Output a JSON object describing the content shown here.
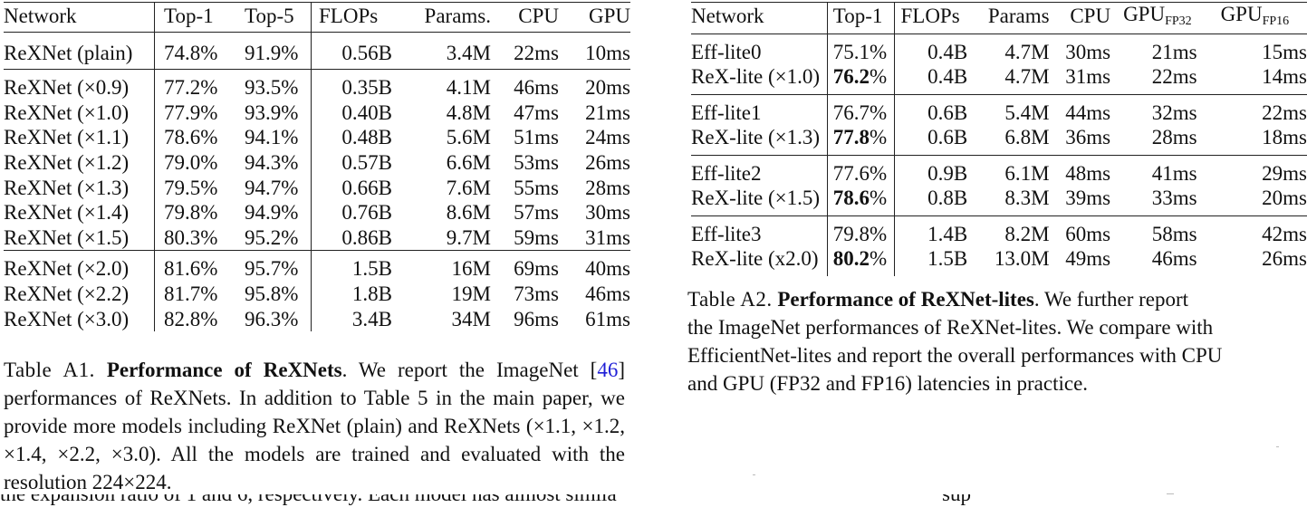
{
  "table_a1": {
    "headers": [
      "Network",
      "Top-1",
      "Top-5",
      "FLOPs",
      "Params.",
      "CPU",
      "GPU"
    ],
    "groups": [
      [
        {
          "net": "ReXNet (plain)",
          "top1": "74.8%",
          "top5": "91.9%",
          "flops": "0.56B",
          "params": "3.4M",
          "cpu": "22ms",
          "gpu": "10ms"
        }
      ],
      [
        {
          "net": "ReXNet (×0.9)",
          "top1": "77.2%",
          "top5": "93.5%",
          "flops": "0.35B",
          "params": "4.1M",
          "cpu": "46ms",
          "gpu": "20ms"
        },
        {
          "net": "ReXNet (×1.0)",
          "top1": "77.9%",
          "top5": "93.9%",
          "flops": "0.40B",
          "params": "4.8M",
          "cpu": "47ms",
          "gpu": "21ms"
        },
        {
          "net": "ReXNet (×1.1)",
          "top1": "78.6%",
          "top5": "94.1%",
          "flops": "0.48B",
          "params": "5.6M",
          "cpu": "51ms",
          "gpu": "24ms"
        },
        {
          "net": "ReXNet (×1.2)",
          "top1": "79.0%",
          "top5": "94.3%",
          "flops": "0.57B",
          "params": "6.6M",
          "cpu": "53ms",
          "gpu": "26ms"
        },
        {
          "net": "ReXNet (×1.3)",
          "top1": "79.5%",
          "top5": "94.7%",
          "flops": "0.66B",
          "params": "7.6M",
          "cpu": "55ms",
          "gpu": "28ms"
        },
        {
          "net": "ReXNet (×1.4)",
          "top1": "79.8%",
          "top5": "94.9%",
          "flops": "0.76B",
          "params": "8.6M",
          "cpu": "57ms",
          "gpu": "30ms"
        },
        {
          "net": "ReXNet (×1.5)",
          "top1": "80.3%",
          "top5": "95.2%",
          "flops": "0.86B",
          "params": "9.7M",
          "cpu": "59ms",
          "gpu": "31ms"
        }
      ],
      [
        {
          "net": "ReXNet (×2.0)",
          "top1": "81.6%",
          "top5": "95.7%",
          "flops": "1.5B",
          "params": "16M",
          "cpu": "69ms",
          "gpu": "40ms"
        },
        {
          "net": "ReXNet (×2.2)",
          "top1": "81.7%",
          "top5": "95.8%",
          "flops": "1.8B",
          "params": "19M",
          "cpu": "73ms",
          "gpu": "46ms"
        },
        {
          "net": "ReXNet (×3.0)",
          "top1": "82.8%",
          "top5": "96.3%",
          "flops": "3.4B",
          "params": "34M",
          "cpu": "96ms",
          "gpu": "61ms"
        }
      ]
    ]
  },
  "caption_a1": {
    "label": "Table A1.",
    "title": "Performance of ReXNets",
    "text_before_ref": ". We report the ImageNet [",
    "ref": "46",
    "text_after_ref": "] performances of ReXNets. In addition to Table 5 in the main paper, we provide more models including ReXNet (plain) and ReXNets (×1.1, ×1.2, ×1.4, ×2.2, ×3.0). All the models are trained and evaluated with the resolution 224×224."
  },
  "table_a2": {
    "headers": {
      "network": "Network",
      "top1": "Top-1",
      "flops": "FLOPs",
      "params": "Params",
      "cpu": "CPU",
      "gpu_fp32_base": "GPU",
      "gpu_fp32_sub": "FP32",
      "gpu_fp16_base": "GPU",
      "gpu_fp16_sub": "FP16"
    },
    "groups": [
      [
        {
          "net": "Eff-lite0",
          "top1": "75.1%",
          "bold": false,
          "flops": "0.4B",
          "params": "4.7M",
          "cpu": "30ms",
          "fp32": "21ms",
          "fp16": "15ms"
        },
        {
          "net": "ReX-lite (×1.0)",
          "top1": "76.2",
          "bold": true,
          "flops": "0.4B",
          "params": "4.7M",
          "cpu": "31ms",
          "fp32": "22ms",
          "fp16": "14ms"
        }
      ],
      [
        {
          "net": "Eff-lite1",
          "top1": "76.7%",
          "bold": false,
          "flops": "0.6B",
          "params": "5.4M",
          "cpu": "44ms",
          "fp32": "32ms",
          "fp16": "22ms"
        },
        {
          "net": "ReX-lite (×1.3)",
          "top1": "77.8",
          "bold": true,
          "flops": "0.6B",
          "params": "6.8M",
          "cpu": "36ms",
          "fp32": "28ms",
          "fp16": "18ms"
        }
      ],
      [
        {
          "net": "Eff-lite2",
          "top1": "77.6%",
          "bold": false,
          "flops": "0.9B",
          "params": "6.1M",
          "cpu": "48ms",
          "fp32": "41ms",
          "fp16": "29ms"
        },
        {
          "net": "ReX-lite (×1.5)",
          "top1": "78.6",
          "bold": true,
          "flops": "0.8B",
          "params": "8.3M",
          "cpu": "39ms",
          "fp32": "33ms",
          "fp16": "20ms"
        }
      ],
      [
        {
          "net": "Eff-lite3",
          "top1": "79.8%",
          "bold": false,
          "flops": "1.4B",
          "params": "8.2M",
          "cpu": "60ms",
          "fp32": "58ms",
          "fp16": "42ms"
        },
        {
          "net": "ReX-lite (x2.0)",
          "top1": "80.2",
          "bold": true,
          "flops": "1.5B",
          "params": "13.0M",
          "cpu": "49ms",
          "fp32": "46ms",
          "fp16": "26ms"
        }
      ]
    ],
    "percent_sign": "%"
  },
  "caption_a2": {
    "label": "Table A2.",
    "title": "Performance of ReXNet-lites",
    "line1_rest": ". We further report",
    "line2": "the ImageNet performances of ReXNet-lites. We compare with",
    "line3": "EfficientNet-lites and report the overall performances with CPU",
    "line4": "and GPU (FP32 and FP16) latencies in practice."
  },
  "cutoff_text": "the expansion ratio of 1 and 6, respectively. Each model has almost simila",
  "cutoff_text_right": "sup"
}
